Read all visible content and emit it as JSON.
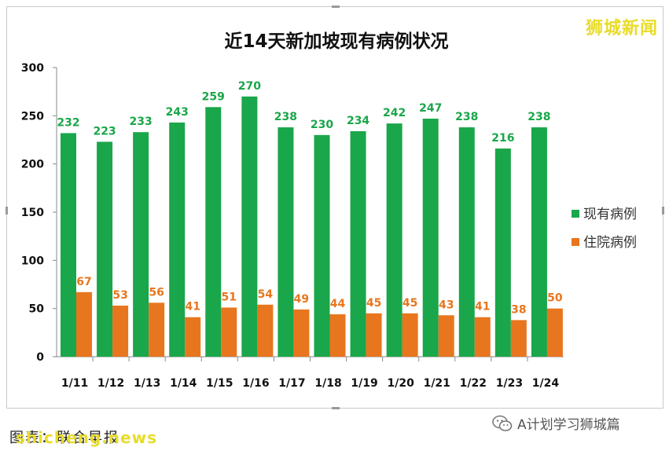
{
  "brand_watermark": "狮城新闻",
  "source_text": "图表：联合早报",
  "bottom_watermark": "shicheng.news",
  "wechat_account": "A计划学习狮城篇",
  "chart_data": {
    "type": "bar",
    "title": "近14天新加坡现有病例状况",
    "categories": [
      "1/11",
      "1/12",
      "1/13",
      "1/14",
      "1/15",
      "1/16",
      "1/17",
      "1/18",
      "1/19",
      "1/20",
      "1/21",
      "1/22",
      "1/23",
      "1/24"
    ],
    "series": [
      {
        "name": "现有病例",
        "color": "#1aa64a",
        "label_color": "#1aa64a",
        "values": [
          232,
          223,
          233,
          243,
          259,
          270,
          238,
          230,
          234,
          242,
          247,
          238,
          216,
          238
        ]
      },
      {
        "name": "住院病例",
        "color": "#e8761e",
        "label_color": "#e8761e",
        "values": [
          67,
          53,
          56,
          41,
          51,
          54,
          49,
          44,
          45,
          45,
          43,
          41,
          38,
          50
        ]
      }
    ],
    "y_ticks": [
      0,
      50,
      100,
      150,
      200,
      250,
      300
    ],
    "ylim": [
      0,
      300
    ],
    "grid": false,
    "legend": "right"
  }
}
